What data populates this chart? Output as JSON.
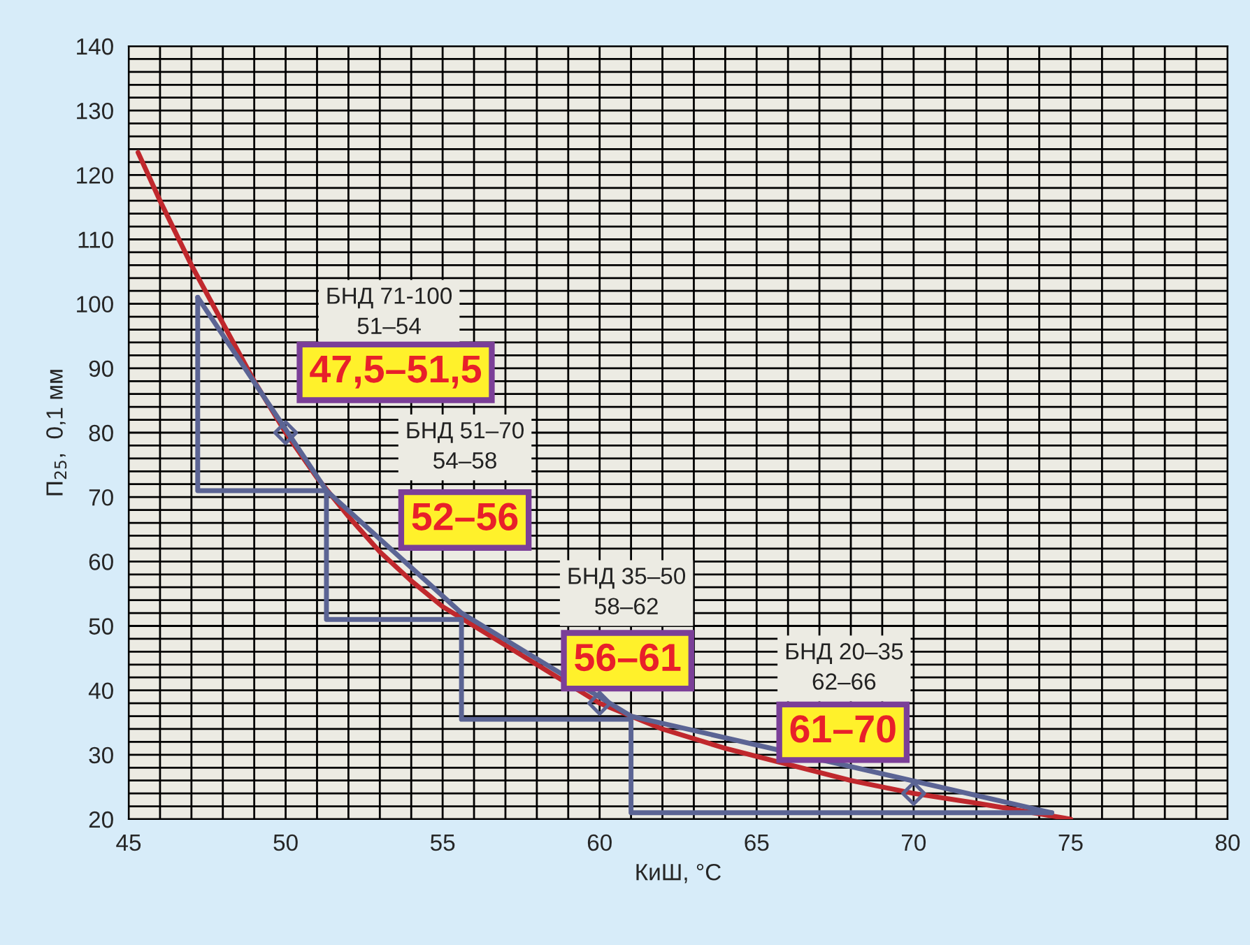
{
  "chart_data": {
    "type": "line",
    "xlabel": "КиШ, °C",
    "ylabel": "П$_{25}$,  0,1 мм",
    "xlim": [
      45,
      80
    ],
    "xticks": [
      45,
      50,
      55,
      60,
      65,
      70,
      75,
      80
    ],
    "ylim": [
      20,
      140
    ],
    "yticks": [
      20,
      30,
      40,
      50,
      60,
      70,
      80,
      90,
      100,
      110,
      120,
      130,
      140
    ],
    "grid": true,
    "series": [
      {
        "color": "#c0282d",
        "marker": "none",
        "x": [
          45.3,
          46,
          47,
          48,
          49,
          50,
          51,
          52,
          53,
          54,
          55,
          56,
          57,
          58,
          59,
          60,
          62,
          64,
          66,
          68,
          70,
          72,
          75
        ],
        "values": [
          123.5,
          116,
          106,
          97,
          88,
          80,
          73,
          67,
          61.5,
          57,
          53,
          50,
          47,
          44,
          null,
          38,
          34,
          31,
          28.5,
          26,
          24,
          22.5,
          20
        ]
      },
      {
        "type": "step",
        "color": "#5b6494",
        "marker": "none",
        "x": [
          47.2,
          51.3,
          55.6,
          61,
          74.4
        ],
        "values": [
          101,
          71,
          51,
          35.5,
          21
        ]
      },
      {
        "color": "#5b6494",
        "marker": "none",
        "x": [
          47.2,
          51.3,
          55.6,
          61,
          74.4
        ],
        "values": [
          101,
          71,
          52,
          36,
          21
        ]
      },
      {
        "type": "scatter",
        "color": "#5b6494",
        "marker": "diamond",
        "x": [
          50,
          60,
          70
        ],
        "values": [
          80,
          38,
          24
        ]
      }
    ],
    "annotations": [
      "БНД 71-100\n51–54",
      "47,5–51,5",
      "БНД 51–70\n54–58",
      "52–56",
      "БНД 35–50\n58–62",
      "56–61",
      "БНД 20–35\n62–66",
      "61–70"
    ]
  }
}
